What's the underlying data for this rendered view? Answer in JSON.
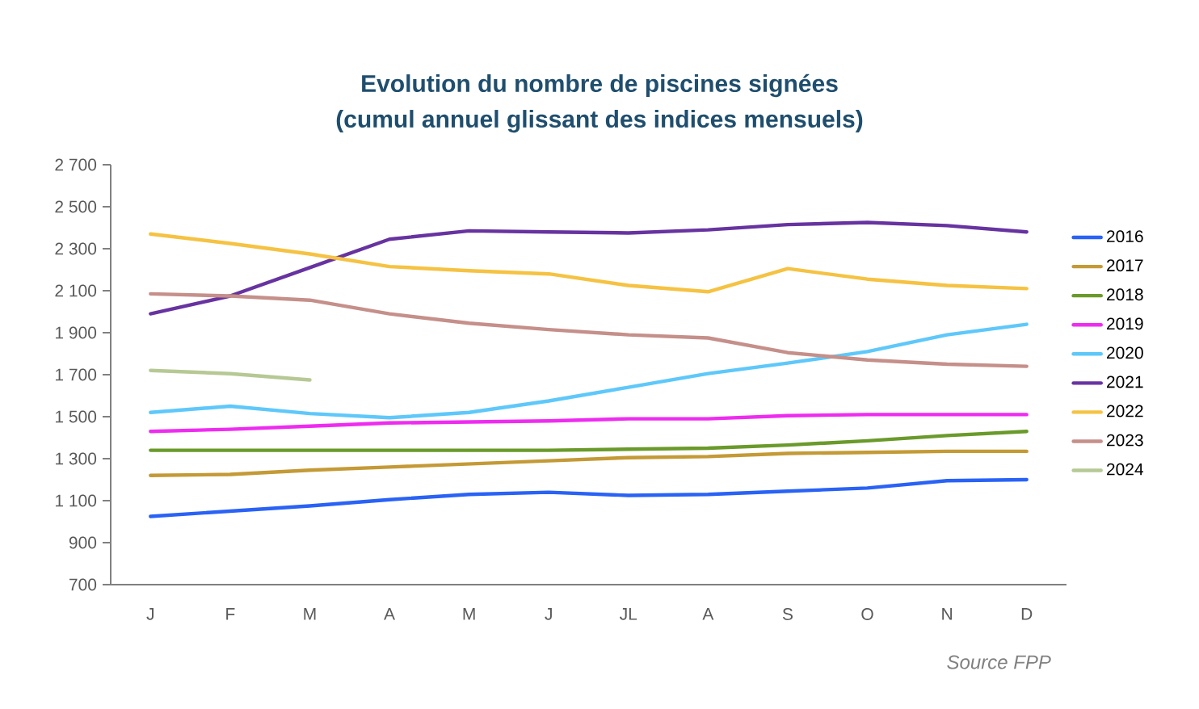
{
  "chart_data": {
    "type": "line",
    "title": "Evolution du nombre de piscines signées\n(cumul annuel glissant des indices mensuels)",
    "categories": [
      "J",
      "F",
      "M",
      "A",
      "M",
      "J",
      "JL",
      "A",
      "S",
      "O",
      "N",
      "D"
    ],
    "series": [
      {
        "name": "2016",
        "color": "#2962f5",
        "values": [
          1025,
          1050,
          1075,
          1105,
          1130,
          1140,
          1125,
          1130,
          1145,
          1160,
          1195,
          1200
        ]
      },
      {
        "name": "2017",
        "color": "#c49a36",
        "values": [
          1220,
          1225,
          1245,
          1260,
          1275,
          1290,
          1305,
          1310,
          1325,
          1330,
          1335,
          1335
        ]
      },
      {
        "name": "2018",
        "color": "#6a9a2a",
        "values": [
          1340,
          1340,
          1340,
          1340,
          1340,
          1340,
          1345,
          1350,
          1365,
          1385,
          1410,
          1430
        ]
      },
      {
        "name": "2019",
        "color": "#ee2cf0",
        "values": [
          1430,
          1440,
          1455,
          1470,
          1475,
          1480,
          1490,
          1490,
          1505,
          1510,
          1510,
          1510
        ]
      },
      {
        "name": "2020",
        "color": "#5ec8fa",
        "values": [
          1520,
          1550,
          1515,
          1495,
          1520,
          1575,
          1640,
          1705,
          1755,
          1810,
          1890,
          1940
        ]
      },
      {
        "name": "2021",
        "color": "#6733a0",
        "values": [
          1990,
          2075,
          2210,
          2345,
          2385,
          2380,
          2375,
          2390,
          2415,
          2425,
          2410,
          2380
        ]
      },
      {
        "name": "2022",
        "color": "#f5c242",
        "values": [
          2370,
          2325,
          2275,
          2215,
          2195,
          2180,
          2125,
          2095,
          2205,
          2155,
          2125,
          2110
        ]
      },
      {
        "name": "2023",
        "color": "#c58f8a",
        "values": [
          2085,
          2075,
          2055,
          1990,
          1945,
          1915,
          1890,
          1875,
          1805,
          1770,
          1750,
          1740
        ]
      },
      {
        "name": "2024",
        "color": "#b6c994",
        "values": [
          1720,
          1705,
          1675,
          null,
          null,
          null,
          null,
          null,
          null,
          null,
          null,
          null
        ]
      }
    ],
    "ylim": [
      700,
      2700
    ],
    "yticks": [
      700,
      900,
      {
        "value": 1100,
        "label": "1 100"
      },
      {
        "value": 1300,
        "label": "1 300"
      },
      {
        "value": 1500,
        "label": "1 500"
      },
      {
        "value": 1700,
        "label": "1 700"
      },
      {
        "value": 1900,
        "label": "1 900"
      },
      {
        "value": 2100,
        "label": "2 100"
      },
      {
        "value": 2300,
        "label": "2 300"
      },
      {
        "value": 2500,
        "label": "2 500"
      },
      {
        "value": 2700,
        "label": "2 700"
      }
    ],
    "grid": false,
    "legend": "right",
    "marker": "none",
    "line_style": "solid",
    "annotations": [
      "Source FPP"
    ]
  }
}
